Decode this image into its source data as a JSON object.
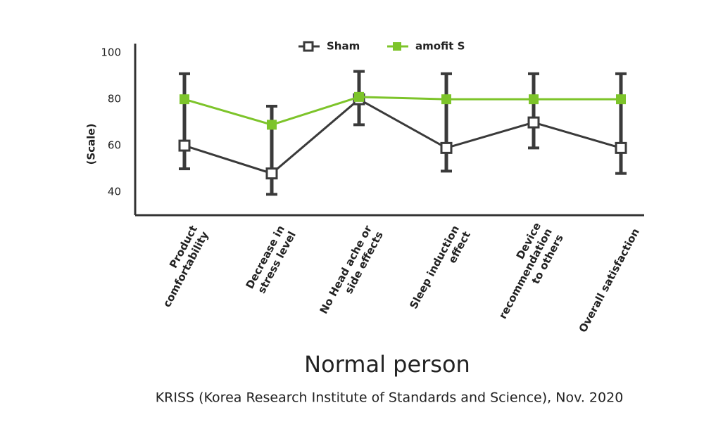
{
  "chart_data": {
    "type": "line",
    "title": "Normal person",
    "subtitle": "KRISS (Korea Research Institute of Standards and Science), Nov. 2020",
    "y_label": "(Scale)",
    "categories": [
      "Product\ncomfortability",
      "Decrease in\nstress level",
      "No Head ache or\nside effects",
      "Sleep induction\neffect",
      "Device\nrecommendation\nto others",
      "Overall satisfaction"
    ],
    "series": [
      {
        "name": "Sham",
        "color": "#3a3a3a",
        "marker": "open-square",
        "values": [
          60,
          48,
          80,
          59,
          70,
          59
        ],
        "errors_lower": [
          10,
          9,
          11,
          10,
          11,
          11
        ]
      },
      {
        "name": "amofit S",
        "color": "#7dc42a",
        "marker": "filled-square",
        "values": [
          80,
          69,
          81,
          80,
          80,
          80
        ],
        "errors_upper": [
          11,
          8,
          11,
          11,
          11,
          11
        ]
      }
    ],
    "ylim": [
      30,
      104
    ],
    "yticks": [
      40,
      60,
      80,
      100
    ],
    "legend": "top"
  }
}
